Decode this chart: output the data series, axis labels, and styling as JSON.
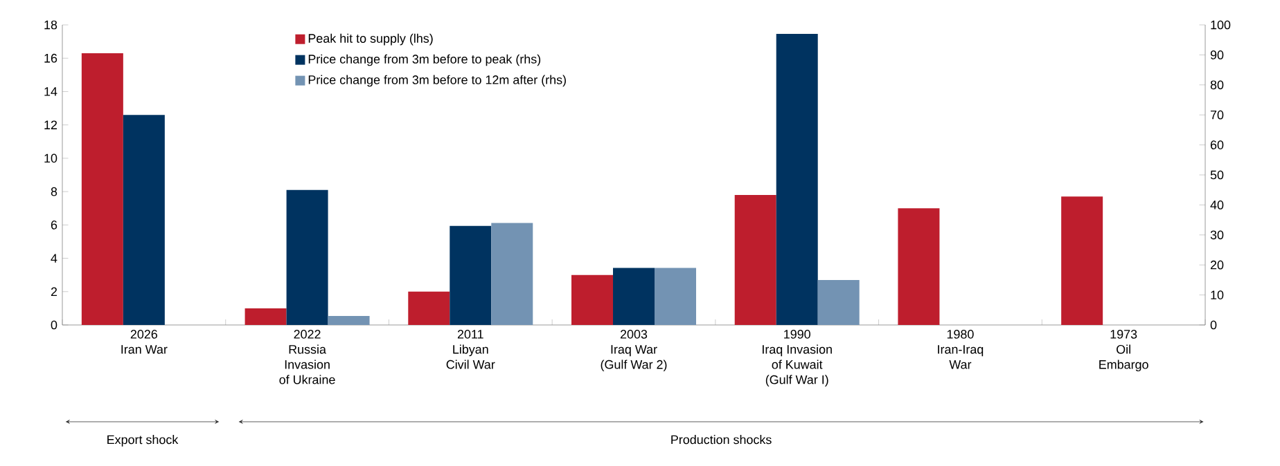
{
  "chart_data": {
    "type": "bar",
    "categories": [
      "2026\nIran War",
      "2022\nRussia\nInvasion\nof Ukraine",
      "2011\nLibyan\nCivil War",
      "2003\nIraq War\n(Gulf War 2)",
      "1990\nIraq Invasion\nof Kuwait\n(Gulf War I)",
      "1980\nIran-Iraq\nWar",
      "1973\nOil\nEmbargo"
    ],
    "series": [
      {
        "name": "Peak hit to supply (lhs)",
        "color": "#be1e2d",
        "values": [
          16.3,
          1.0,
          2.0,
          3.0,
          7.8,
          7.0,
          7.7
        ]
      },
      {
        "name": "Price change from 3m before to peak (rhs)",
        "color": "#003360",
        "axis": "y2",
        "values": [
          70,
          45,
          33,
          19,
          97,
          null,
          null
        ]
      },
      {
        "name": "Price change from 3m before to 12m after (rhs)",
        "color": "#7393b3",
        "axis": "y2",
        "values": [
          null,
          3,
          34,
          19,
          15,
          null,
          null
        ]
      }
    ],
    "ylim": [
      0,
      18
    ],
    "yticks": [
      0,
      2,
      4,
      6,
      8,
      10,
      12,
      14,
      16,
      18
    ],
    "y2lim": [
      0,
      100
    ],
    "y2ticks": [
      0,
      10,
      20,
      30,
      40,
      50,
      60,
      70,
      80,
      90,
      100
    ],
    "legend": "top",
    "grid": false,
    "annotations": [
      "Export shock",
      "Production shocks"
    ]
  }
}
